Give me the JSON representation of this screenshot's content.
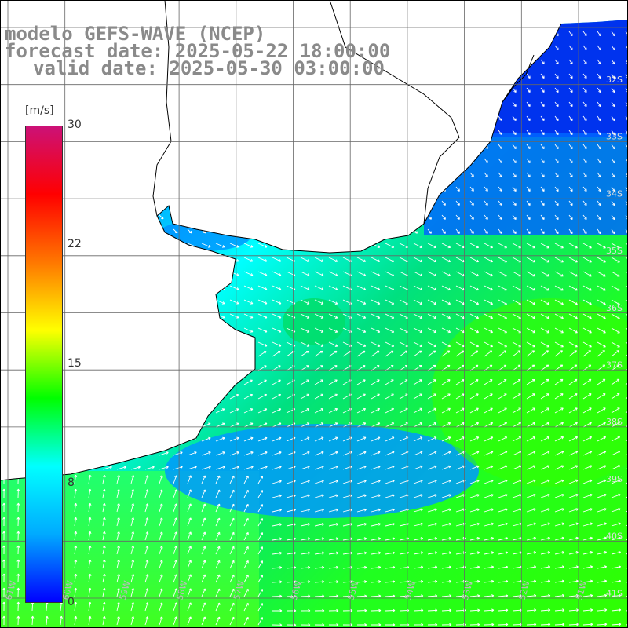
{
  "title": {
    "line1": "modelo GEFS-WAVE (NCEP)",
    "line2": "forecast date: 2025-05-22 18:00:00",
    "line3": "valid date: 2025-05-30 03:00:00"
  },
  "colorbar": {
    "unit": "[m/s]",
    "ticks": [
      "30",
      "22",
      "15",
      "8",
      "0"
    ],
    "tick_values": [
      30,
      22,
      15,
      8,
      0
    ],
    "colors": [
      "#0000ff",
      "#00aaff",
      "#00ffff",
      "#00ff00",
      "#ffff00",
      "#ff7700",
      "#ff0000",
      "#cc1177"
    ]
  },
  "grid": {
    "lat_labels": [
      "32S",
      "33S",
      "34S",
      "35S",
      "36S",
      "37S",
      "38S",
      "39S",
      "40S",
      "41S"
    ],
    "lon_labels": [
      "61W",
      "60W",
      "59W",
      "58W",
      "57W",
      "56W",
      "55W",
      "54W",
      "53W",
      "52W",
      "51W"
    ]
  },
  "colors": {
    "land": "#ffffff",
    "grid": "#666666",
    "coast": "#000000",
    "arrow": "#ffffff",
    "title": "#8a8a8a"
  }
}
